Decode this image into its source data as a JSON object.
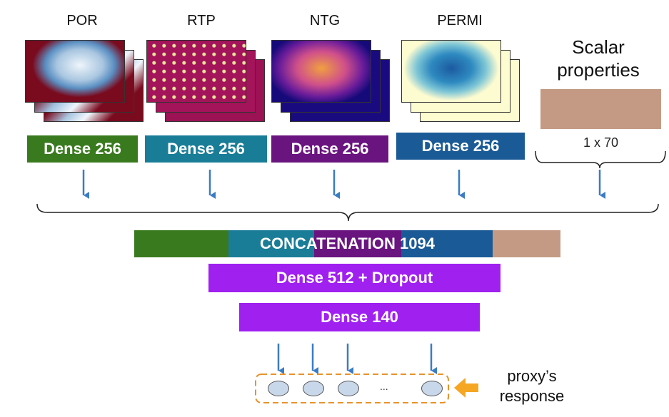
{
  "columns": [
    {
      "title": "POR",
      "dense_label": "Dense 256",
      "dense_color": "#3a7a1e"
    },
    {
      "title": "RTP",
      "dense_label": "Dense 256",
      "dense_color": "#1a7d98"
    },
    {
      "title": "NTG",
      "dense_label": "Dense 256",
      "dense_color": "#6a1480"
    },
    {
      "title": "PERMI",
      "dense_label": "Dense 256",
      "dense_color": "#1a5a96"
    }
  ],
  "scalar": {
    "title_line1": "Scalar",
    "title_line2": "properties",
    "dim_label": "1 x 70",
    "color": "#c49a84"
  },
  "concat": {
    "label": "CONCATENATION 1094"
  },
  "dense_512": {
    "label": "Dense 512 + Dropout",
    "color": "#a020f0"
  },
  "dense_140": {
    "label": "Dense 140",
    "color": "#a020f0"
  },
  "output": {
    "ellipsis": "...",
    "response_line1": "proxy’s",
    "response_line2": "response",
    "arrow_color": "#f5a623"
  },
  "arrow_color": "#3a7cc4"
}
